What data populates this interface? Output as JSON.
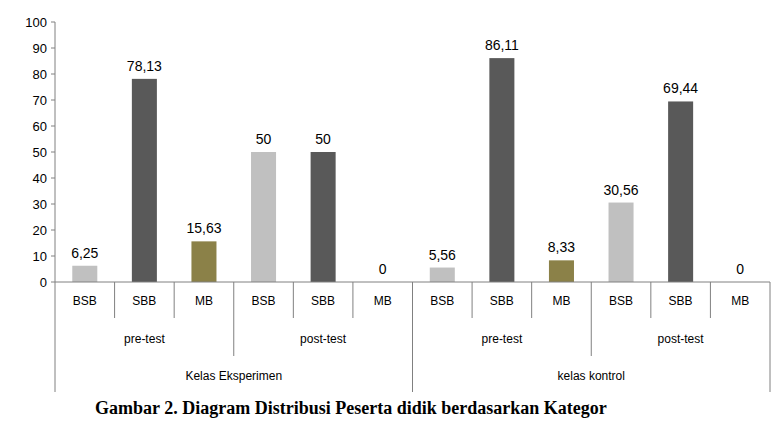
{
  "chart_data": {
    "type": "bar",
    "title": "Gambar 2. Diagram Distribusi Peserta didik berdasarkan Kategor",
    "ylim": [
      0,
      100
    ],
    "yticks": [
      0,
      10,
      20,
      30,
      40,
      50,
      60,
      70,
      80,
      90,
      100
    ],
    "grid": false,
    "data_labels": true,
    "groups": [
      {
        "name": "Kelas Eksperimen",
        "subgroups": [
          {
            "name": "pre-test",
            "categories": [
              "BSB",
              "SBB",
              "MB"
            ],
            "values": [
              6.25,
              78.13,
              15.63
            ],
            "value_labels": [
              "6,25",
              "78,13",
              "15,63"
            ],
            "colors": [
              "#c0c0c0",
              "#595959",
              "#8b8148"
            ]
          },
          {
            "name": "post-test",
            "categories": [
              "BSB",
              "SBB",
              "MB"
            ],
            "values": [
              50,
              50,
              0
            ],
            "value_labels": [
              "50",
              "50",
              "0"
            ],
            "colors": [
              "#c0c0c0",
              "#595959",
              "#8b8148"
            ]
          }
        ]
      },
      {
        "name": "kelas kontrol",
        "subgroups": [
          {
            "name": "pre-test",
            "categories": [
              "BSB",
              "SBB",
              "MB"
            ],
            "values": [
              5.56,
              86.11,
              8.33
            ],
            "value_labels": [
              "5,56",
              "86,11",
              "8,33"
            ],
            "colors": [
              "#c0c0c0",
              "#595959",
              "#8b8148"
            ]
          },
          {
            "name": "post-test",
            "categories": [
              "BSB",
              "SBB",
              "MB"
            ],
            "values": [
              30.56,
              69.44,
              0
            ],
            "value_labels": [
              "30,56",
              "69,44",
              "0"
            ],
            "colors": [
              "#c0c0c0",
              "#595959",
              "#8b8148"
            ]
          }
        ]
      }
    ]
  }
}
